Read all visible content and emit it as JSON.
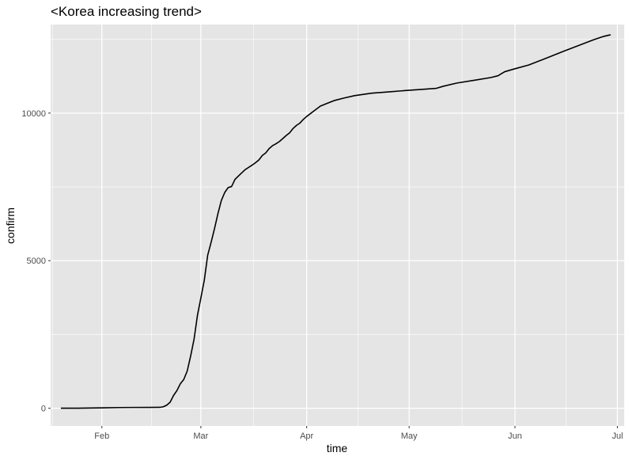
{
  "chart_data": {
    "type": "line",
    "title": "<Korea increasing trend>",
    "xlabel": "time",
    "ylabel": "confirm",
    "x_tick_labels": [
      "Feb",
      "Mar",
      "Apr",
      "May",
      "Jun",
      "Jul"
    ],
    "x_ticks": [
      "2020-02-01",
      "2020-03-01",
      "2020-04-01",
      "2020-05-01",
      "2020-06-01",
      "2020-07-01"
    ],
    "y_tick_labels": [
      "0",
      "5000",
      "10000"
    ],
    "y_ticks": [
      0,
      5000,
      10000
    ],
    "xlim": [
      "2020-01-17",
      "2020-07-03"
    ],
    "ylim": [
      -600,
      13000
    ],
    "grid": true,
    "background": "#e5e5e5",
    "gridline_color": "#ffffff",
    "line_color": "#000000",
    "x": [
      "2020-01-20",
      "2020-01-25",
      "2020-01-31",
      "2020-02-02",
      "2020-02-06",
      "2020-02-10",
      "2020-02-15",
      "2020-02-18",
      "2020-02-19",
      "2020-02-20",
      "2020-02-21",
      "2020-02-22",
      "2020-02-23",
      "2020-02-24",
      "2020-02-25",
      "2020-02-26",
      "2020-02-27",
      "2020-02-28",
      "2020-02-29",
      "2020-03-01",
      "2020-03-02",
      "2020-03-03",
      "2020-03-04",
      "2020-03-05",
      "2020-03-06",
      "2020-03-07",
      "2020-03-08",
      "2020-03-09",
      "2020-03-10",
      "2020-03-11",
      "2020-03-12",
      "2020-03-13",
      "2020-03-14",
      "2020-03-15",
      "2020-03-16",
      "2020-03-17",
      "2020-03-18",
      "2020-03-19",
      "2020-03-20",
      "2020-03-21",
      "2020-03-22",
      "2020-03-23",
      "2020-03-24",
      "2020-03-25",
      "2020-03-26",
      "2020-03-27",
      "2020-03-28",
      "2020-03-29",
      "2020-03-30",
      "2020-03-31",
      "2020-04-01",
      "2020-04-03",
      "2020-04-05",
      "2020-04-07",
      "2020-04-09",
      "2020-04-12",
      "2020-04-15",
      "2020-04-20",
      "2020-04-25",
      "2020-04-30",
      "2020-05-05",
      "2020-05-09",
      "2020-05-11",
      "2020-05-15",
      "2020-05-20",
      "2020-05-25",
      "2020-05-27",
      "2020-05-29",
      "2020-06-01",
      "2020-06-05",
      "2020-06-10",
      "2020-06-15",
      "2020-06-20",
      "2020-06-24",
      "2020-06-27",
      "2020-06-29"
    ],
    "series": [
      {
        "values": [
          1,
          2,
          11,
          15,
          24,
          27,
          28,
          31,
          51,
          104,
          204,
          433,
          602,
          833,
          977,
          1261,
          1766,
          2337,
          3150,
          3736,
          4335,
          5186,
          5621,
          6088,
          6593,
          7041,
          7313,
          7478,
          7513,
          7755,
          7869,
          7979,
          8086,
          8162,
          8236,
          8320,
          8413,
          8565,
          8652,
          8799,
          8897,
          8961,
          9037,
          9137,
          9241,
          9332,
          9478,
          9583,
          9661,
          9786,
          9887,
          10062,
          10237,
          10331,
          10423,
          10512,
          10591,
          10674,
          10718,
          10765,
          10806,
          10840,
          10909,
          11018,
          11110,
          11206,
          11265,
          11402,
          11503,
          11629,
          11852,
          12085,
          12306,
          12484,
          12600,
          12653
        ]
      }
    ]
  }
}
